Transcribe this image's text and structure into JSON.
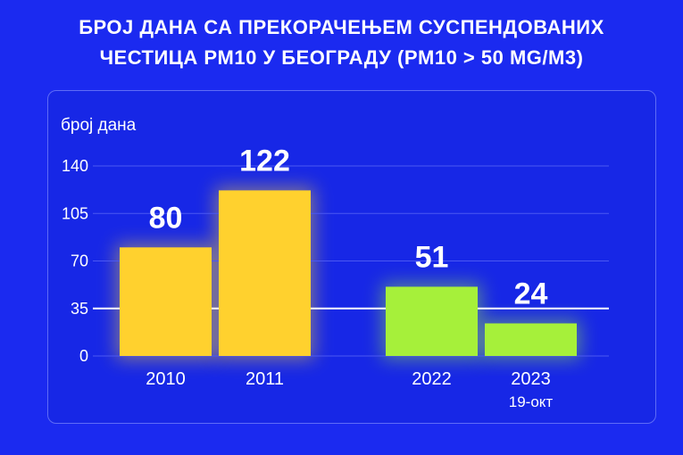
{
  "title_line1": "БРОЈ ДАНА СА ПРЕКОРАЧЕЊЕМ СУСПЕНДОВАНИХ",
  "title_line2": "ЧЕСТИЦА PM10 У БЕОГРАДУ (PM10 > 50 MG/M3)",
  "chart_data": {
    "type": "bar",
    "title": "БРОЈ ДАНА СА ПРЕКОРАЧЕЊЕМ СУСПЕНДОВАНИХ ЧЕСТИЦА PM10 У БЕОГРАДУ (PM10 > 50 MG/M3)",
    "ylabel": "број дана",
    "xlabel": "",
    "yticks": [
      0,
      35,
      70,
      105,
      140
    ],
    "ylim": [
      0,
      140
    ],
    "grid": true,
    "categories": [
      "2010",
      "2011",
      "2022",
      "2023"
    ],
    "category_sublabels": [
      "",
      "",
      "",
      "19-окт"
    ],
    "values": [
      80,
      122,
      51,
      24
    ],
    "colors": [
      "#ffd12e",
      "#ffd12e",
      "#a6f03a",
      "#a6f03a"
    ],
    "highlight_line_at": 35
  }
}
